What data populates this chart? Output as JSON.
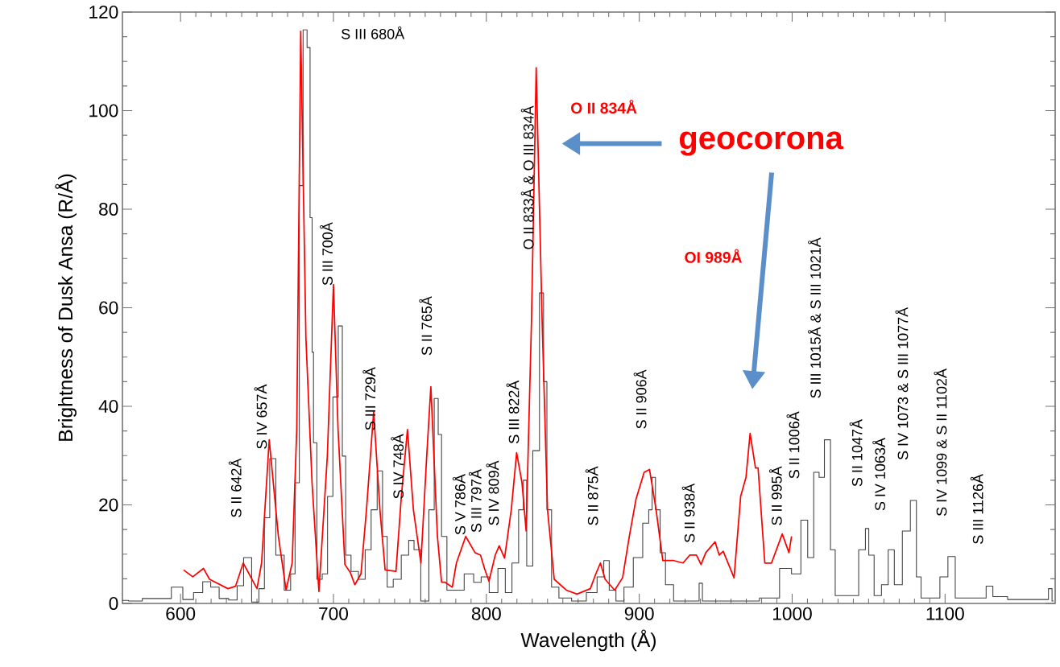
{
  "chart_data": {
    "type": "line",
    "xlabel": "Wavelength (Å)",
    "ylabel": "Brightness of Dusk Ansa (R/Å)",
    "xlim": [
      562,
      1172
    ],
    "ylim": [
      0,
      120
    ],
    "xticks": [
      600,
      700,
      800,
      900,
      1000,
      1100
    ],
    "yticks": [
      0,
      20,
      40,
      60,
      80,
      100,
      120
    ],
    "series": [
      {
        "type": "step",
        "color": "#404040",
        "x": [
          562,
          570,
          580,
          590,
          598,
          605,
          612,
          617,
          622.5,
          628,
          635,
          639,
          643.5,
          649.5,
          653,
          656.7,
          660,
          664.6,
          671,
          673,
          676.8,
          678.6,
          681.7,
          683.8,
          685.6,
          686.5,
          687.4,
          690.9,
          694.4,
          697.9,
          701.4,
          704.9,
          706.7,
          709.3,
          713.7,
          719,
          722.5,
          726.8,
          730.4,
          733.8,
          736.5,
          741.7,
          747,
          751.4,
          754,
          760.2,
          764.6,
          767.2,
          769.8,
          771.6,
          776.8,
          782,
          789,
          794.4,
          798.8,
          804.9,
          810.2,
          814.6,
          818.9,
          823.3,
          825.1,
          827.7,
          833,
          836.5,
          838.3,
          840.9,
          844.4,
          850.5,
          861,
          869.8,
          875,
          878.6,
          882.1,
          887.4,
          892.6,
          899.6,
          904.9,
          907.5,
          909.3,
          911.9,
          915.4,
          918.9,
          926,
          938.3,
          940,
          942.6,
          969.8,
          987.4,
          996.1,
          1003,
          1008.4,
          1011.9,
          1016.3,
          1018.9,
          1023.3,
          1026.8,
          1029.5,
          1040,
          1047,
          1048.8,
          1051.4,
          1055.8,
          1061,
          1064.6,
          1069,
          1075.1,
          1079.5,
          1083,
          1085.6,
          1094.4,
          1098.8,
          1104.9,
          1108.4,
          1124.2,
          1129.5,
          1133,
          1148.8,
          1166.3,
          1168.9,
          1171
        ],
        "values": [
          0.6,
          0.5,
          1.0,
          1.0,
          3.3,
          0.8,
          2.2,
          4.4,
          3.3,
          1.0,
          0.7,
          3.6,
          9.3,
          0.3,
          3.0,
          17.4,
          29.4,
          9.8,
          2.7,
          6.0,
          24.5,
          84.8,
          116.4,
          112.8,
          78.3,
          51,
          32.6,
          4.9,
          6.0,
          21.7,
          41.9,
          56.3,
          29.9,
          9.8,
          6.5,
          4.9,
          10.9,
          19,
          26.9,
          13.6,
          3.3,
          4.9,
          9.8,
          12.8,
          10.9,
          0.5,
          19,
          41.6,
          34.3,
          13.6,
          2.7,
          2.7,
          6,
          4.3,
          5.4,
          2.2,
          7.1,
          2.2,
          8.2,
          19,
          25,
          7.6,
          31,
          63,
          45,
          19,
          3.3,
          1.1,
          0.5,
          2.2,
          5.4,
          8.7,
          2.7,
          0.5,
          3.3,
          9.3,
          16.3,
          19,
          25.6,
          19,
          10.3,
          3.8,
          0.5,
          0.5,
          4.1,
          0.5,
          0.5,
          1.1,
          7.1,
          6.0,
          16.9,
          9.3,
          26.6,
          25.6,
          33.2,
          10.9,
          1.6,
          1.6,
          10.9,
          15.2,
          9.8,
          1.6,
          3.8,
          10.9,
          3.8,
          14.7,
          20.9,
          5.4,
          1.1,
          1.1,
          5.4,
          9.5,
          1.1,
          1.1,
          3.5,
          1.4,
          0.8,
          0.8,
          3.0,
          0.5
        ]
      },
      {
        "color": "#ff0000",
        "x": [
          602,
          608,
          615,
          619,
          631,
          636,
          641,
          650,
          653,
          658,
          664,
          669,
          673,
          676,
          678.6,
          682,
          686,
          690.5,
          696,
          700,
          703,
          707.5,
          711,
          714,
          718,
          721.6,
          726.3,
          730.4,
          733.8,
          740.9,
          744.4,
          748.4,
          752.3,
          757.2,
          761,
          763.7,
          768,
          770.7,
          773,
          777.7,
          780.4,
          786.5,
          792.6,
          796.2,
          798.8,
          801.7,
          805.8,
          808.4,
          811.9,
          816.3,
          819.8,
          823.3,
          826,
          829.5,
          832.6,
          836.5,
          840,
          844.4,
          852.3,
          859.3,
          868,
          871.6,
          874.6,
          877.7,
          883.9,
          889.1,
          893.5,
          897.9,
          903.2,
          906.7,
          911,
          915.4,
          922.5,
          928.6,
          933,
          937.4,
          940.4,
          943.5,
          949.6,
          952.3,
          954.9,
          962,
          966.3,
          969.8,
          972.5,
          976,
          977.7,
          982.1,
          986.5,
          993.5,
          997.9,
          999.6
        ],
        "values": [
          6.8,
          5.4,
          7.1,
          4.9,
          3.0,
          3.5,
          8.2,
          3.0,
          8.2,
          33.2,
          13.6,
          2.7,
          8.2,
          35.3,
          116.1,
          53.8,
          24.5,
          2.4,
          29.9,
          64.7,
          35.4,
          7.9,
          6.3,
          3.8,
          6.0,
          19.0,
          38.9,
          19.0,
          6.8,
          6.5,
          21.7,
          35.3,
          19.0,
          8.2,
          29.9,
          44.0,
          13.6,
          4.3,
          4.3,
          3.3,
          8.2,
          13.6,
          10.3,
          9.8,
          7.1,
          4.5,
          9.8,
          11.7,
          9.2,
          19.0,
          30.6,
          24.5,
          14.7,
          57.1,
          108.7,
          57.1,
          19.0,
          4.9,
          2.7,
          1.9,
          3.0,
          6.0,
          8.2,
          4.9,
          2.7,
          5.2,
          13.6,
          21.2,
          26.6,
          27.2,
          19.0,
          8.7,
          8.7,
          8.2,
          9.8,
          9.8,
          7.9,
          10.3,
          12.5,
          9.8,
          10.6,
          5.2,
          21.7,
          25.6,
          34.5,
          27.5,
          27.5,
          8.2,
          8.2,
          14.1,
          10.3,
          13.6
        ]
      }
    ],
    "annotations": [
      "S II 642Å",
      "S IV 657Å",
      "S III 680Å",
      "S III 700Å",
      "S III 729Å",
      "S IV 748Å",
      "S II 765Å",
      "S V 786Å",
      "S III 797Å",
      "S IV 809Å",
      "S III 822Å",
      "O II 833Å & O III 834Å",
      "S II 875Å",
      "S II 906Å",
      "S II 938Å",
      "S II 995Å",
      "S II 1006Å",
      "S III 1015Å & S III 1021Å",
      "S II 1047Å",
      "S IV 1063Å",
      "S IV 1073 & S III 1077Å",
      "S IV 1099 & S II 1102Å",
      "S III 1126Å",
      "O II 834Å",
      "geocorona",
      "OI 989Å"
    ]
  }
}
